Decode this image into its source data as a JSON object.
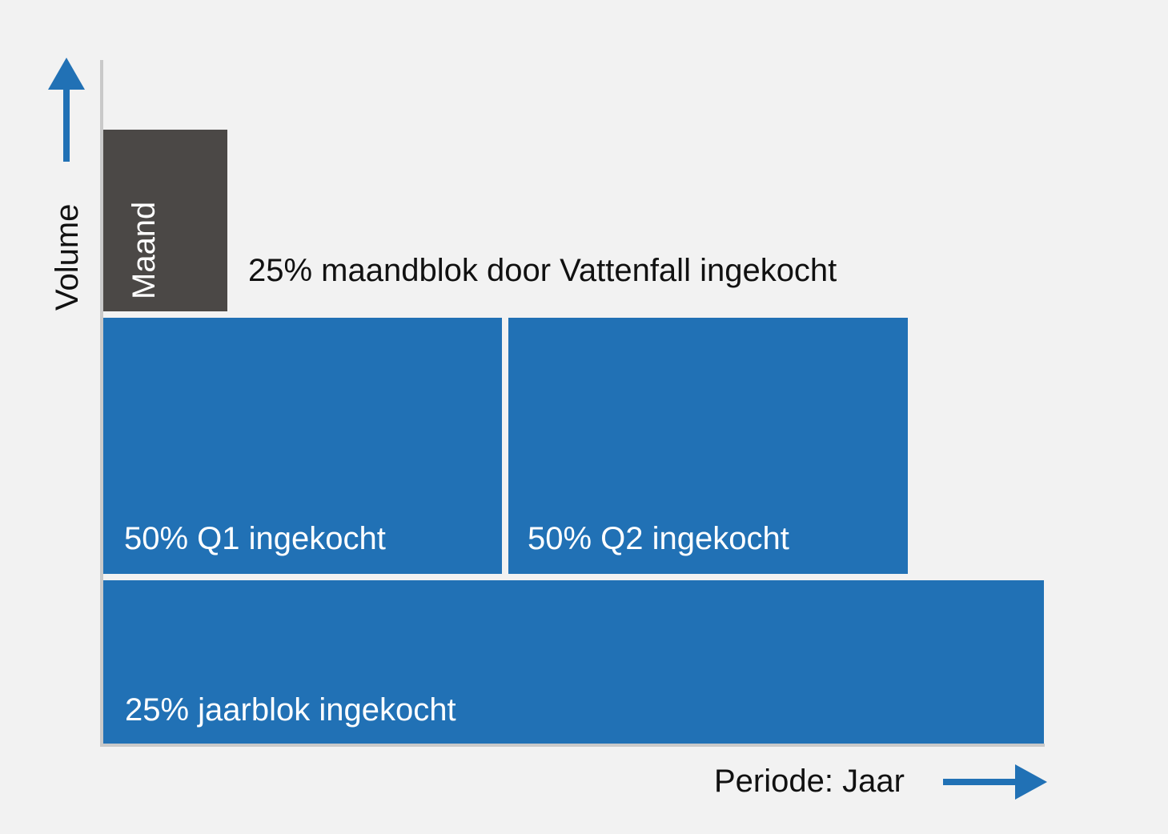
{
  "axes": {
    "ylabel": "Volume",
    "xlabel": "Periode: Jaar",
    "arrow_color": "#2171b5"
  },
  "blocks": {
    "maand": {
      "label": "Maand",
      "color": "#4b4846"
    },
    "q1": {
      "label": "50% Q1 ingekocht",
      "color": "#2171b5"
    },
    "q2": {
      "label": "50% Q2 ingekocht",
      "color": "#2171b5"
    },
    "jaar": {
      "label": "25% jaarblok ingekocht",
      "color": "#2171b5"
    }
  },
  "annotation": "25% maandblok door Vattenfall ingekocht",
  "icons": {
    "y_arrow": "arrow-up-icon",
    "x_arrow": "arrow-right-icon"
  }
}
